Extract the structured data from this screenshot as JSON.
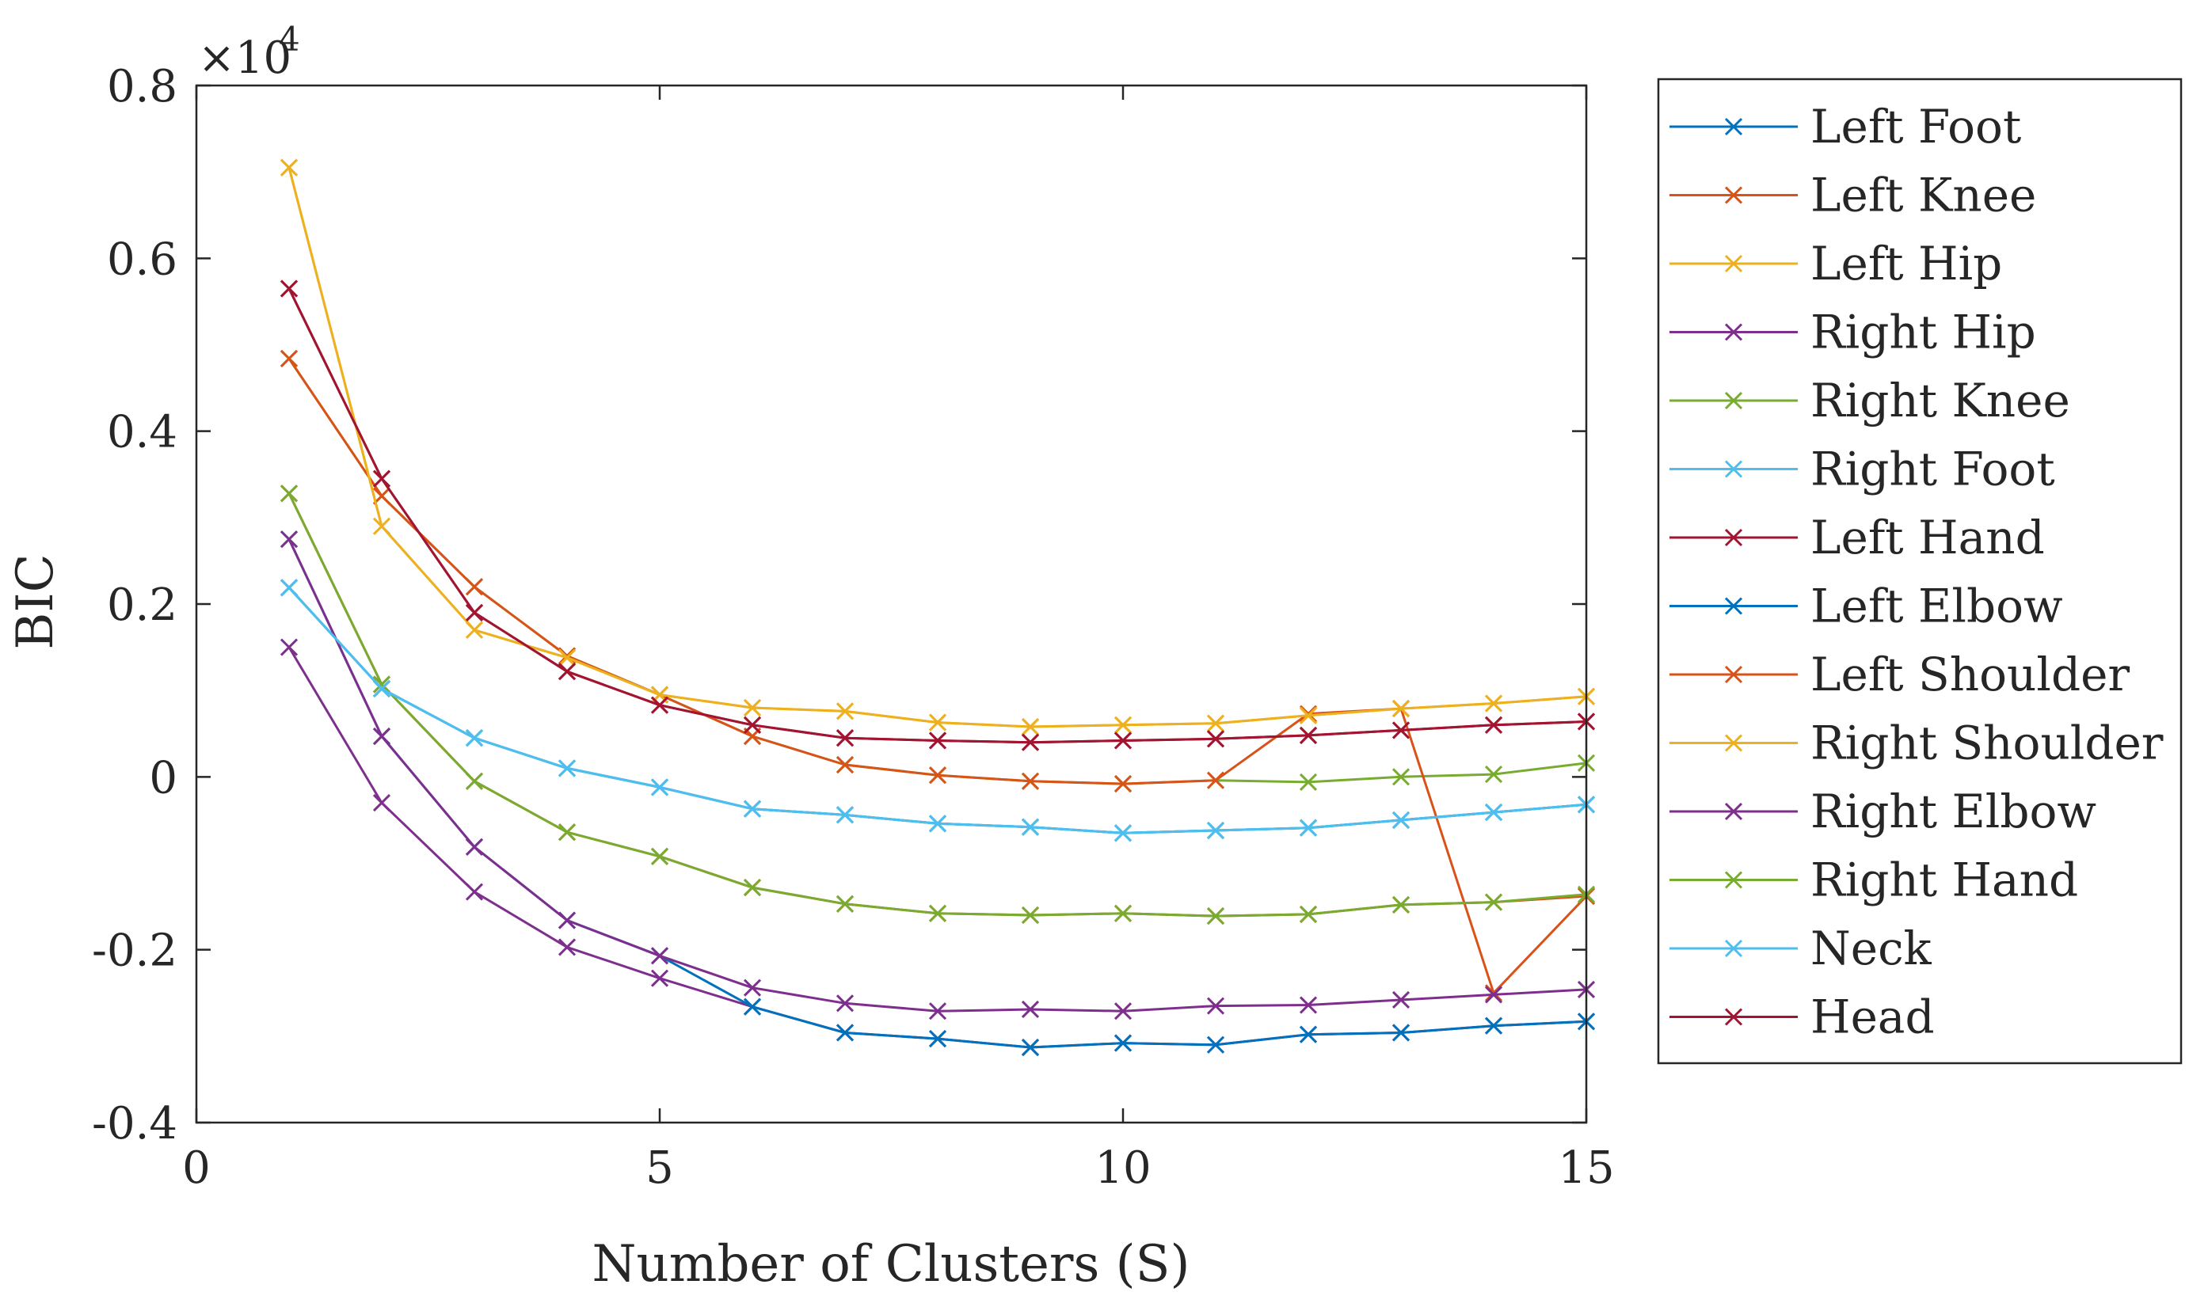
{
  "chart_data": {
    "type": "line",
    "title": "",
    "xlabel": "Number of Clusters (S)",
    "ylabel": "BIC",
    "y_multiplier_label": "×10",
    "y_multiplier_exponent": "4",
    "xlim": [
      0,
      15
    ],
    "ylim": [
      -0.4,
      0.8
    ],
    "x_ticks": [
      0,
      5,
      10,
      15
    ],
    "x_tick_labels": [
      "0",
      "5",
      "10",
      "15"
    ],
    "y_ticks": [
      -0.4,
      -0.2,
      0,
      0.2,
      0.4,
      0.6,
      0.8
    ],
    "y_tick_labels": [
      "-0.4",
      "-0.2",
      "0",
      "0.2",
      "0.4",
      "0.6",
      "0.8"
    ],
    "grid": false,
    "legend_position": "outside-right",
    "marker": "x",
    "x": [
      1,
      2,
      3,
      4,
      5,
      6,
      7,
      8,
      9,
      10,
      11,
      12,
      13,
      14,
      15
    ],
    "series": [
      {
        "name": "Left Foot",
        "color": "#0072BD",
        "values": [
          0.219,
          0.102,
          0.045,
          0.01,
          -0.012,
          -0.037,
          -0.044,
          -0.054,
          -0.058,
          -0.065,
          -0.062,
          -0.059,
          -0.05,
          -0.041,
          -0.032
        ]
      },
      {
        "name": "Left Knee",
        "color": "#D95319",
        "values": [
          0.328,
          0.107,
          -0.005,
          -0.064,
          -0.092,
          -0.128,
          -0.147,
          -0.158,
          -0.16,
          -0.158,
          -0.161,
          -0.159,
          -0.148,
          -0.145,
          -0.138
        ]
      },
      {
        "name": "Left Hip",
        "color": "#EDB120",
        "values": [
          0.705,
          0.29,
          0.17,
          0.138,
          0.095,
          0.08,
          0.076,
          0.063,
          0.058,
          0.06,
          0.062,
          0.071,
          0.079,
          0.085,
          0.093
        ]
      },
      {
        "name": "Right Hip",
        "color": "#7E2F8E",
        "values": [
          0.15,
          -0.03,
          -0.133,
          -0.197,
          -0.233,
          -0.266,
          -0.296,
          -0.303,
          -0.313,
          -0.308,
          -0.31,
          -0.298,
          -0.296,
          -0.288,
          -0.283
        ]
      },
      {
        "name": "Right Knee",
        "color": "#77AC30",
        "values": [
          0.484,
          0.325,
          0.22,
          0.14,
          0.095,
          0.047,
          0.014,
          0.002,
          -0.005,
          -0.008,
          -0.004,
          -0.006,
          0.0,
          0.003,
          0.016
        ]
      },
      {
        "name": "Right Foot",
        "color": "#4DBEEE",
        "values": [
          0.219,
          0.102,
          0.045,
          0.01,
          -0.012,
          -0.037,
          -0.044,
          -0.054,
          -0.058,
          -0.065,
          -0.062,
          -0.059,
          -0.05,
          -0.041,
          -0.032
        ]
      },
      {
        "name": "Left Hand",
        "color": "#A2142F",
        "values": [
          0.565,
          0.345,
          0.19,
          0.122,
          0.083,
          0.06,
          0.045,
          0.042,
          0.04,
          0.042,
          0.044,
          0.048,
          0.054,
          0.06,
          0.064
        ]
      },
      {
        "name": "Left Elbow",
        "color": "#0072BD",
        "values": [
          0.275,
          0.047,
          -0.081,
          -0.166,
          -0.207,
          -0.266,
          -0.296,
          -0.303,
          -0.313,
          -0.308,
          -0.31,
          -0.298,
          -0.296,
          -0.288,
          -0.283
        ]
      },
      {
        "name": "Left Shoulder",
        "color": "#D95319",
        "values": [
          0.484,
          0.325,
          0.22,
          0.14,
          0.095,
          0.047,
          0.014,
          0.002,
          -0.005,
          -0.008,
          -0.004,
          0.073,
          0.079,
          -0.25,
          -0.138
        ]
      },
      {
        "name": "Right Shoulder",
        "color": "#EDB120",
        "values": [
          0.705,
          0.29,
          0.17,
          0.138,
          0.095,
          0.08,
          0.076,
          0.063,
          0.058,
          0.06,
          0.062,
          0.071,
          0.079,
          0.085,
          0.093
        ]
      },
      {
        "name": "Right Elbow",
        "color": "#7E2F8E",
        "values": [
          0.275,
          0.047,
          -0.081,
          -0.166,
          -0.207,
          -0.244,
          -0.262,
          -0.271,
          -0.269,
          -0.271,
          -0.265,
          -0.264,
          -0.258,
          -0.252,
          -0.246
        ]
      },
      {
        "name": "Right Hand",
        "color": "#77AC30",
        "values": [
          0.328,
          0.107,
          -0.005,
          -0.064,
          -0.092,
          -0.128,
          -0.147,
          -0.158,
          -0.16,
          -0.158,
          -0.161,
          -0.159,
          -0.148,
          -0.145,
          -0.136
        ]
      },
      {
        "name": "Neck",
        "color": "#4DBEEE",
        "values": [
          0.219,
          0.102,
          0.045,
          0.01,
          -0.012,
          -0.037,
          -0.044,
          -0.054,
          -0.058,
          -0.065,
          -0.062,
          -0.059,
          -0.05,
          -0.041,
          -0.032
        ]
      },
      {
        "name": "Head",
        "color": "#A2142F",
        "values": [
          0.565,
          0.345,
          0.19,
          0.122,
          0.083,
          0.06,
          0.045,
          0.042,
          0.04,
          0.042,
          0.044,
          0.048,
          0.054,
          0.06,
          0.064
        ]
      }
    ]
  }
}
